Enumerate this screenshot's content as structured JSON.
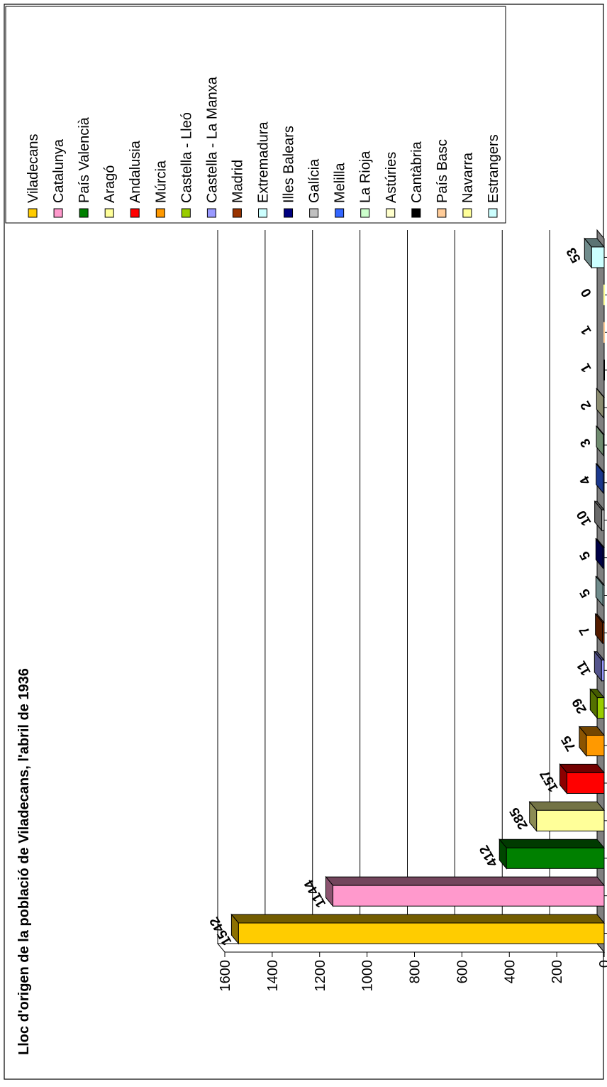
{
  "chart_data": {
    "type": "bar",
    "title": "Lloc d'origen de la població de Viladecans, l'abril de 1936",
    "xlabel": "",
    "ylabel": "",
    "ylim": [
      0,
      1600
    ],
    "yticks": [
      "0",
      "200",
      "400",
      "600",
      "800",
      "1000",
      "1200",
      "1400",
      "1600"
    ],
    "grid": true,
    "three_d": true,
    "legend_position": "right",
    "categories": [
      "Viladecans",
      "Catalunya",
      "País Valencià",
      "Aragó",
      "Andalusia",
      "Múrcia",
      "Castella - Lleó",
      "Castella - La Manxa",
      "Madrid",
      "Extremadura",
      "Illes Balears",
      "Galícia",
      "Melilla",
      "La Rioja",
      "Astúries",
      "Cantàbria",
      "País Basc",
      "Navarra",
      "Estrangers"
    ],
    "values": [
      1542,
      1144,
      412,
      285,
      157,
      75,
      29,
      11,
      7,
      5,
      5,
      10,
      4,
      3,
      2,
      1,
      1,
      0,
      53
    ],
    "value_labels": [
      "1542",
      "1144",
      "412",
      "285",
      "157",
      "75",
      "29",
      "11",
      "7",
      "5",
      "5",
      "10",
      "4",
      "3",
      "2",
      "1",
      "1",
      "0",
      "53"
    ],
    "colors": [
      "#FFCC00",
      "#FF99CC",
      "#008000",
      "#FFFF99",
      "#FF0000",
      "#FF9900",
      "#99CC00",
      "#9999FF",
      "#993300",
      "#CCFFFF",
      "#000080",
      "#C0C0C0",
      "#3366FF",
      "#CCFFCC",
      "#FFFFCC",
      "#000000",
      "#FFCC99",
      "#FFFF99",
      "#CCFFFF"
    ]
  }
}
